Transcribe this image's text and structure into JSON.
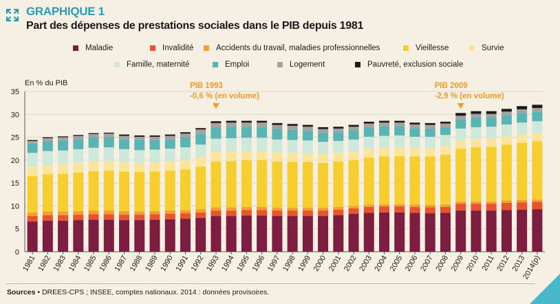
{
  "header": {
    "graph_label": "GRAPHIQUE 1",
    "title": "Part des dépenses de prestations sociales dans le PIB depuis 1981"
  },
  "footer": {
    "source_label": "Sources",
    "source_text": " • DREES-CPS ; INSEE, comptes nationaux. 2014 : données provisoires."
  },
  "chart_data": {
    "type": "bar",
    "stacked": true,
    "y_unit_label": "En % du PIB",
    "ylim": [
      0,
      35
    ],
    "yticks": [
      0,
      5,
      10,
      15,
      20,
      25,
      30,
      35
    ],
    "grid": true,
    "categories": [
      "1981",
      "1982",
      "1983",
      "1984",
      "1985",
      "1986",
      "1987",
      "1988",
      "1989",
      "1990",
      "1991",
      "1992",
      "1993",
      "1994",
      "1995",
      "1996",
      "1997",
      "1998",
      "1999",
      "2000",
      "2001",
      "2002",
      "2003",
      "2004",
      "2005",
      "2006",
      "2007",
      "2008",
      "2009",
      "2010",
      "2011",
      "2012",
      "2013",
      "2014(p)"
    ],
    "series": [
      {
        "name": "Maladie",
        "color": "#7d1d3f",
        "values": [
          6.6,
          6.8,
          6.8,
          6.9,
          7.0,
          7.0,
          6.9,
          6.9,
          7.0,
          7.1,
          7.2,
          7.4,
          7.8,
          7.8,
          7.9,
          7.9,
          7.8,
          7.8,
          7.8,
          7.8,
          8.0,
          8.3,
          8.5,
          8.6,
          8.6,
          8.5,
          8.4,
          8.5,
          9.0,
          9.0,
          9.0,
          9.1,
          9.2,
          9.3
        ]
      },
      {
        "name": "Invalidité",
        "color": "#e8542b",
        "values": [
          1.2,
          1.2,
          1.2,
          1.2,
          1.2,
          1.2,
          1.2,
          1.2,
          1.2,
          1.2,
          1.2,
          1.2,
          1.2,
          1.2,
          1.2,
          1.2,
          1.2,
          1.2,
          1.2,
          1.2,
          1.2,
          1.2,
          1.3,
          1.3,
          1.3,
          1.3,
          1.3,
          1.3,
          1.5,
          1.5,
          1.5,
          1.6,
          1.6,
          1.6
        ]
      },
      {
        "name": "Accidents du travail, maladies professionnelles",
        "color": "#f0a030",
        "values": [
          0.8,
          0.8,
          0.8,
          0.8,
          0.8,
          0.8,
          0.8,
          0.7,
          0.7,
          0.7,
          0.7,
          0.7,
          0.7,
          0.7,
          0.7,
          0.7,
          0.6,
          0.6,
          0.6,
          0.6,
          0.6,
          0.5,
          0.5,
          0.5,
          0.5,
          0.5,
          0.5,
          0.5,
          0.5,
          0.5,
          0.5,
          0.5,
          0.5,
          0.5
        ]
      },
      {
        "name": "Vieillesse",
        "color": "#f7ce2f",
        "values": [
          7.9,
          8.1,
          8.2,
          8.4,
          8.6,
          8.7,
          8.6,
          8.6,
          8.6,
          8.7,
          8.9,
          9.3,
          10.0,
          10.1,
          10.2,
          10.2,
          10.1,
          10.0,
          10.0,
          9.8,
          9.9,
          10.0,
          10.3,
          10.4,
          10.5,
          10.5,
          10.6,
          10.9,
          11.5,
          11.8,
          11.9,
          12.2,
          12.5,
          12.7
        ]
      },
      {
        "name": "Survie",
        "color": "#fbe59a",
        "values": [
          2.1,
          2.1,
          2.1,
          2.1,
          2.1,
          2.1,
          2.0,
          2.0,
          2.0,
          2.0,
          2.0,
          2.0,
          2.1,
          2.1,
          2.0,
          2.0,
          2.0,
          2.0,
          1.9,
          1.9,
          1.9,
          1.9,
          1.9,
          1.9,
          1.9,
          1.8,
          1.8,
          1.8,
          1.8,
          1.8,
          1.8,
          1.8,
          1.8,
          1.8
        ]
      },
      {
        "name": "Famille, maternité",
        "color": "#cfe8dc",
        "values": [
          3.0,
          3.0,
          3.0,
          3.0,
          3.0,
          3.0,
          2.9,
          2.8,
          2.8,
          2.8,
          2.8,
          2.8,
          2.9,
          2.9,
          2.9,
          2.9,
          2.8,
          2.8,
          2.8,
          2.7,
          2.6,
          2.6,
          2.6,
          2.6,
          2.6,
          2.5,
          2.5,
          2.5,
          2.6,
          2.6,
          2.6,
          2.6,
          2.6,
          2.6
        ]
      },
      {
        "name": "Emploi",
        "color": "#5ab4b4",
        "values": [
          2.0,
          2.2,
          2.2,
          2.2,
          2.3,
          2.3,
          2.2,
          2.2,
          2.1,
          2.1,
          2.2,
          2.4,
          2.5,
          2.5,
          2.4,
          2.4,
          2.3,
          2.2,
          2.1,
          2.0,
          1.9,
          2.0,
          2.1,
          2.1,
          2.0,
          1.9,
          1.8,
          1.7,
          2.0,
          2.1,
          2.0,
          2.0,
          2.1,
          2.1
        ]
      },
      {
        "name": "Logement",
        "color": "#a3a3a3",
        "values": [
          0.6,
          0.6,
          0.7,
          0.7,
          0.7,
          0.7,
          0.7,
          0.7,
          0.7,
          0.7,
          0.8,
          0.9,
          0.9,
          0.9,
          0.9,
          0.9,
          0.9,
          0.9,
          0.9,
          0.8,
          0.8,
          0.8,
          0.8,
          0.8,
          0.8,
          0.8,
          0.8,
          0.8,
          0.8,
          0.8,
          0.8,
          0.8,
          0.8,
          0.8
        ]
      },
      {
        "name": "Pauvreté, exclusion sociale",
        "color": "#1a1a1a",
        "values": [
          0.2,
          0.2,
          0.2,
          0.2,
          0.2,
          0.2,
          0.3,
          0.3,
          0.3,
          0.3,
          0.3,
          0.3,
          0.4,
          0.4,
          0.4,
          0.4,
          0.4,
          0.4,
          0.4,
          0.4,
          0.4,
          0.4,
          0.4,
          0.4,
          0.4,
          0.4,
          0.4,
          0.4,
          0.6,
          0.6,
          0.6,
          0.6,
          0.7,
          0.7
        ]
      }
    ],
    "annotations": [
      {
        "at_category": "1993",
        "lines": [
          "PIB 1993",
          "-0,6 % (en volume)"
        ],
        "color": "#f39a1e"
      },
      {
        "at_category": "2009",
        "lines": [
          "PIB 2009",
          "-2,9 % (en volume)"
        ],
        "color": "#f39a1e"
      }
    ]
  }
}
